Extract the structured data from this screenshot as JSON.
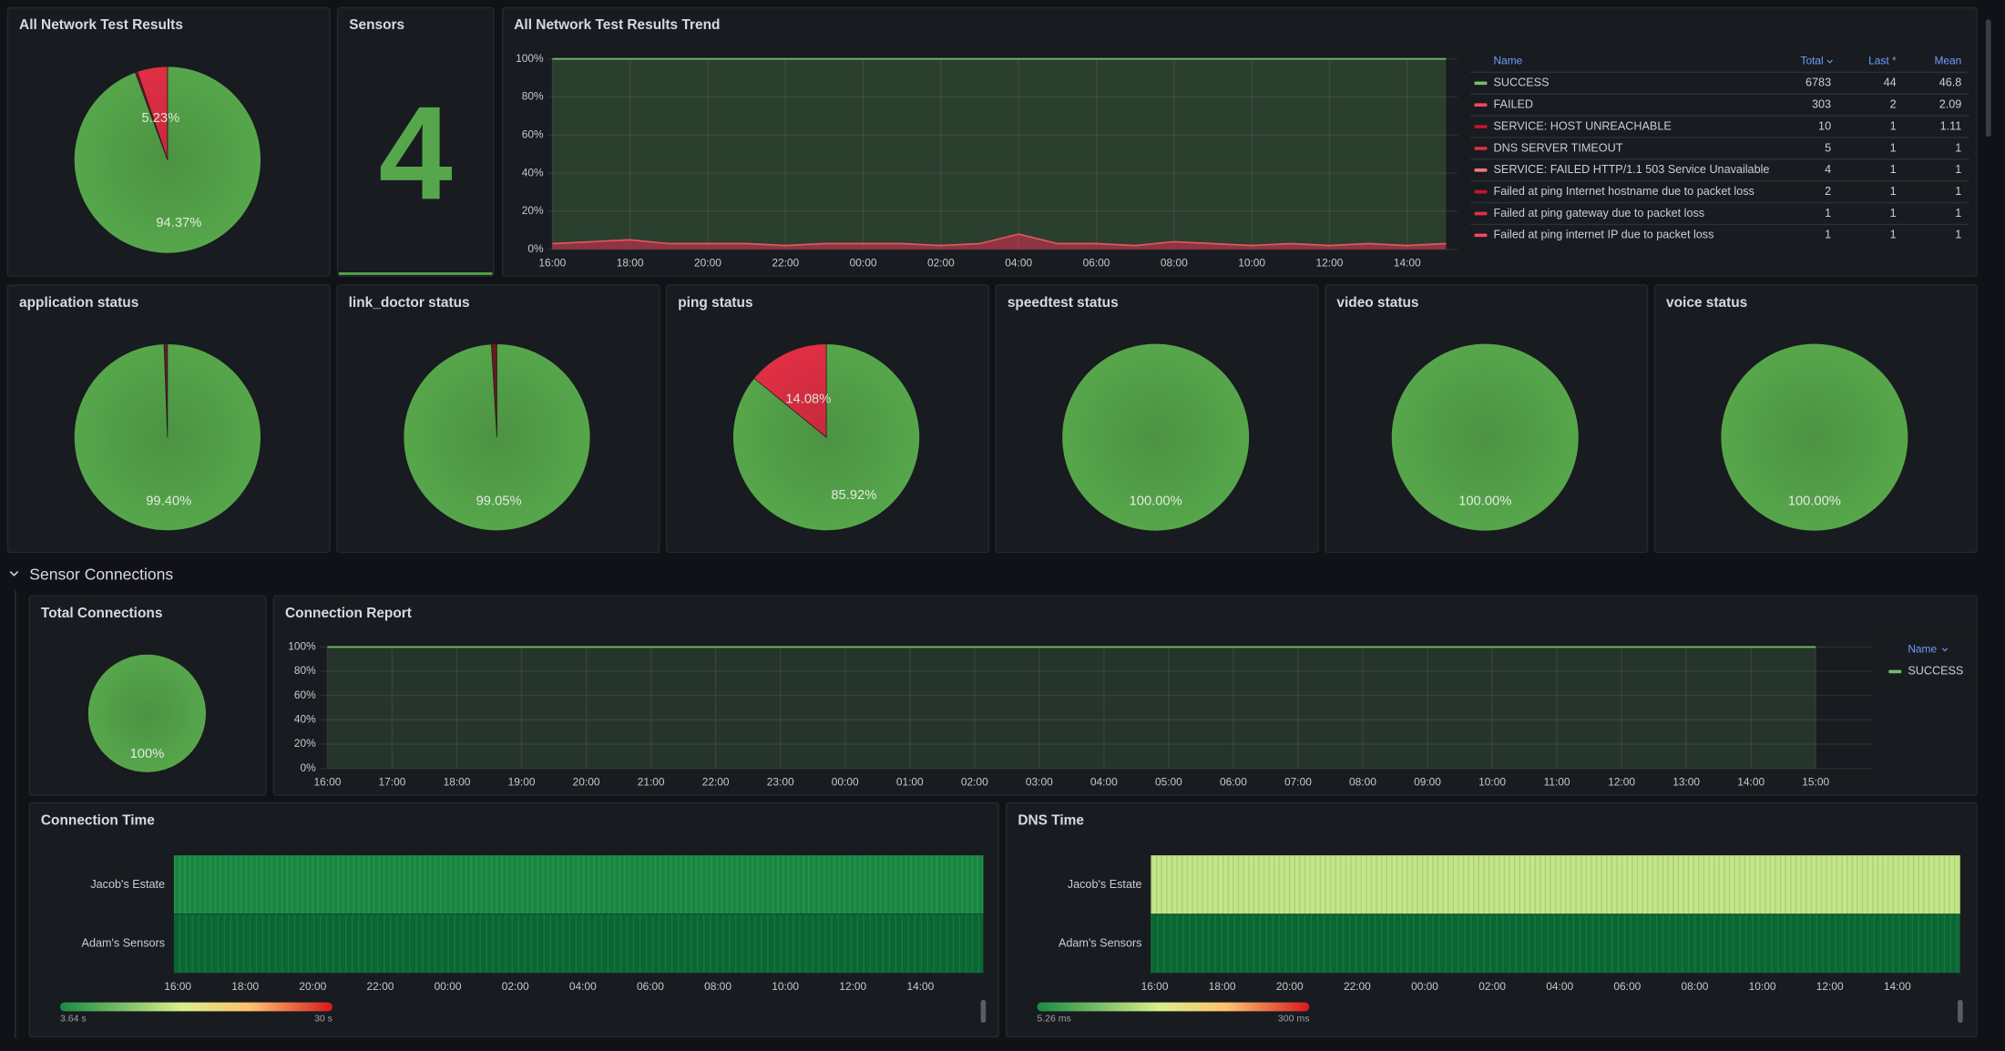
{
  "dashboard": {
    "results": {
      "title": "All Network Test Results",
      "slices": [
        {
          "value": 94.37,
          "label": "94.37%",
          "color": "#56a64b"
        },
        {
          "value": 5.23,
          "label": "5.23%",
          "color": "#e02f44"
        }
      ]
    },
    "sensors": {
      "title": "Sensors",
      "value": 4,
      "color": "#56a64b"
    },
    "trend": {
      "title": "All Network Test Results Trend",
      "ylim": [
        0,
        100
      ],
      "yticks": [
        {
          "value": 0,
          "label": "0%"
        },
        {
          "value": 20,
          "label": "20%"
        },
        {
          "value": 40,
          "label": "40%"
        },
        {
          "value": 60,
          "label": "60%"
        },
        {
          "value": 80,
          "label": "80%"
        },
        {
          "value": 100,
          "label": "100%"
        }
      ],
      "xlim": [
        -0.13,
        23.3
      ],
      "xticks": [
        {
          "value": 0,
          "label": "16:00"
        },
        {
          "value": 2,
          "label": "18:00"
        },
        {
          "value": 4,
          "label": "20:00"
        },
        {
          "value": 6,
          "label": "22:00"
        },
        {
          "value": 8,
          "label": "00:00"
        },
        {
          "value": 10,
          "label": "02:00"
        },
        {
          "value": 12,
          "label": "04:00"
        },
        {
          "value": 14,
          "label": "06:00"
        },
        {
          "value": 16,
          "label": "08:00"
        },
        {
          "value": 18,
          "label": "10:00"
        },
        {
          "value": 20,
          "label": "12:00"
        },
        {
          "value": 22,
          "label": "14:00"
        }
      ],
      "x": [
        0,
        1,
        2,
        3,
        4,
        5,
        6,
        7,
        8,
        9,
        10,
        11,
        12,
        13,
        14,
        15,
        16,
        17,
        18,
        19,
        20,
        21,
        22,
        23
      ],
      "legend": {
        "columns": [
          "Name",
          "Total",
          "Last *",
          "Mean"
        ],
        "rows": [
          {
            "name": "SUCCESS",
            "color": "#73bf69",
            "total": 6783,
            "last": 44,
            "mean": 46.8,
            "values": [
              97,
              96,
              95,
              97,
              97,
              97,
              98,
              97,
              97,
              97,
              98,
              97,
              92,
              97,
              97,
              98,
              96,
              97,
              98,
              97,
              98,
              97,
              98,
              97
            ]
          },
          {
            "name": "FAILED",
            "color": "#f2495c",
            "total": 303,
            "last": 2,
            "mean": 2.09,
            "values": [
              3,
              4,
              5,
              3,
              3,
              3,
              2,
              3,
              3,
              3,
              2,
              3,
              8,
              3,
              3,
              2,
              4,
              3,
              2,
              3,
              2,
              3,
              2,
              3
            ]
          },
          {
            "name": "SERVICE: HOST UNREACHABLE",
            "color": "#c4162a",
            "total": 10,
            "last": 1,
            "mean": 1.11
          },
          {
            "name": "DNS SERVER TIMEOUT",
            "color": "#e02f44",
            "total": 5,
            "last": 1,
            "mean": 1
          },
          {
            "name": "SERVICE: FAILED HTTP/1.1 503 Service Unavailable",
            "color": "#ff7383",
            "total": 4,
            "last": 1,
            "mean": 1
          },
          {
            "name": "Failed at ping Internet hostname due to packet loss",
            "color": "#c4162a",
            "total": 2,
            "last": 1,
            "mean": 1
          },
          {
            "name": "Failed at ping gateway due to packet loss",
            "color": "#e02f44",
            "total": 1,
            "last": 1,
            "mean": 1
          },
          {
            "name": "Failed at ping internet IP due to packet loss",
            "color": "#f2495c",
            "total": 1,
            "last": 1,
            "mean": 1
          }
        ]
      }
    },
    "status": [
      {
        "title": "application status",
        "slices": [
          {
            "value": 99.4,
            "label": "99.40%",
            "color": "#56a64b"
          }
        ]
      },
      {
        "title": "link_doctor status",
        "slices": [
          {
            "value": 99.05,
            "label": "99.05%",
            "color": "#56a64b"
          }
        ]
      },
      {
        "title": "ping status",
        "slices": [
          {
            "value": 85.92,
            "label": "85.92%",
            "color": "#56a64b"
          },
          {
            "value": 14.08,
            "label": "14.08%",
            "color": "#e02f44"
          }
        ]
      },
      {
        "title": "speedtest status",
        "slices": [
          {
            "value": 100,
            "label": "100.00%",
            "color": "#56a64b"
          }
        ]
      },
      {
        "title": "video status",
        "slices": [
          {
            "value": 100,
            "label": "100.00%",
            "color": "#56a64b"
          }
        ]
      },
      {
        "title": "voice status",
        "slices": [
          {
            "value": 100,
            "label": "100.00%",
            "color": "#56a64b"
          }
        ]
      }
    ],
    "section": "Sensor Connections",
    "total_connections": {
      "title": "Total Connections",
      "slices": [
        {
          "value": 100,
          "label": "100%",
          "color": "#56a64b"
        }
      ]
    },
    "report": {
      "title": "Connection Report",
      "ylim": [
        0,
        100
      ],
      "yticks": [
        {
          "value": 0,
          "label": "0%"
        },
        {
          "value": 20,
          "label": "20%"
        },
        {
          "value": 40,
          "label": "40%"
        },
        {
          "value": 60,
          "label": "60%"
        },
        {
          "value": 80,
          "label": "80%"
        },
        {
          "value": 100,
          "label": "100%"
        }
      ],
      "xlim": [
        -0.12,
        23.87
      ],
      "xticks": [
        {
          "value": 0,
          "label": "16:00"
        },
        {
          "value": 1,
          "label": "17:00"
        },
        {
          "value": 2,
          "label": "18:00"
        },
        {
          "value": 3,
          "label": "19:00"
        },
        {
          "value": 4,
          "label": "20:00"
        },
        {
          "value": 5,
          "label": "21:00"
        },
        {
          "value": 6,
          "label": "22:00"
        },
        {
          "value": 7,
          "label": "23:00"
        },
        {
          "value": 8,
          "label": "00:00"
        },
        {
          "value": 9,
          "label": "01:00"
        },
        {
          "value": 10,
          "label": "02:00"
        },
        {
          "value": 11,
          "label": "03:00"
        },
        {
          "value": 12,
          "label": "04:00"
        },
        {
          "value": 13,
          "label": "05:00"
        },
        {
          "value": 14,
          "label": "06:00"
        },
        {
          "value": 15,
          "label": "07:00"
        },
        {
          "value": 16,
          "label": "08:00"
        },
        {
          "value": 17,
          "label": "09:00"
        },
        {
          "value": 18,
          "label": "10:00"
        },
        {
          "value": 19,
          "label": "11:00"
        },
        {
          "value": 20,
          "label": "12:00"
        },
        {
          "value": 21,
          "label": "13:00"
        },
        {
          "value": 22,
          "label": "14:00"
        },
        {
          "value": 23,
          "label": "15:00"
        }
      ],
      "x": [
        0,
        1,
        2,
        3,
        4,
        5,
        6,
        7,
        8,
        9,
        10,
        11,
        12,
        13,
        14,
        15,
        16,
        17,
        18,
        19,
        20,
        21,
        22,
        23
      ],
      "legend_header": "Name",
      "series": [
        {
          "name": "SUCCESS",
          "color": "#73bf69",
          "values": [
            100,
            100,
            100,
            100,
            100,
            100,
            100,
            100,
            100,
            100,
            100,
            100,
            100,
            100,
            100,
            100,
            100,
            100,
            100,
            100,
            100,
            100,
            100,
            100
          ]
        }
      ]
    },
    "heatmaps": [
      {
        "title": "Connection Time",
        "rows": [
          "Jacob's Estate",
          "Adam's Sensors"
        ],
        "xticks": [
          "16:00",
          "18:00",
          "20:00",
          "22:00",
          "00:00",
          "02:00",
          "04:00",
          "06:00",
          "08:00",
          "10:00",
          "12:00",
          "14:00"
        ],
        "scale": [
          "3.64 s",
          "30 s"
        ]
      },
      {
        "title": "DNS Time",
        "rows": [
          "Jacob's Estate",
          "Adam's Sensors"
        ],
        "xticks": [
          "16:00",
          "18:00",
          "20:00",
          "22:00",
          "00:00",
          "02:00",
          "04:00",
          "06:00",
          "08:00",
          "10:00",
          "12:00",
          "14:00"
        ],
        "scale": [
          "5.26 ms",
          "300 ms"
        ]
      }
    ]
  }
}
